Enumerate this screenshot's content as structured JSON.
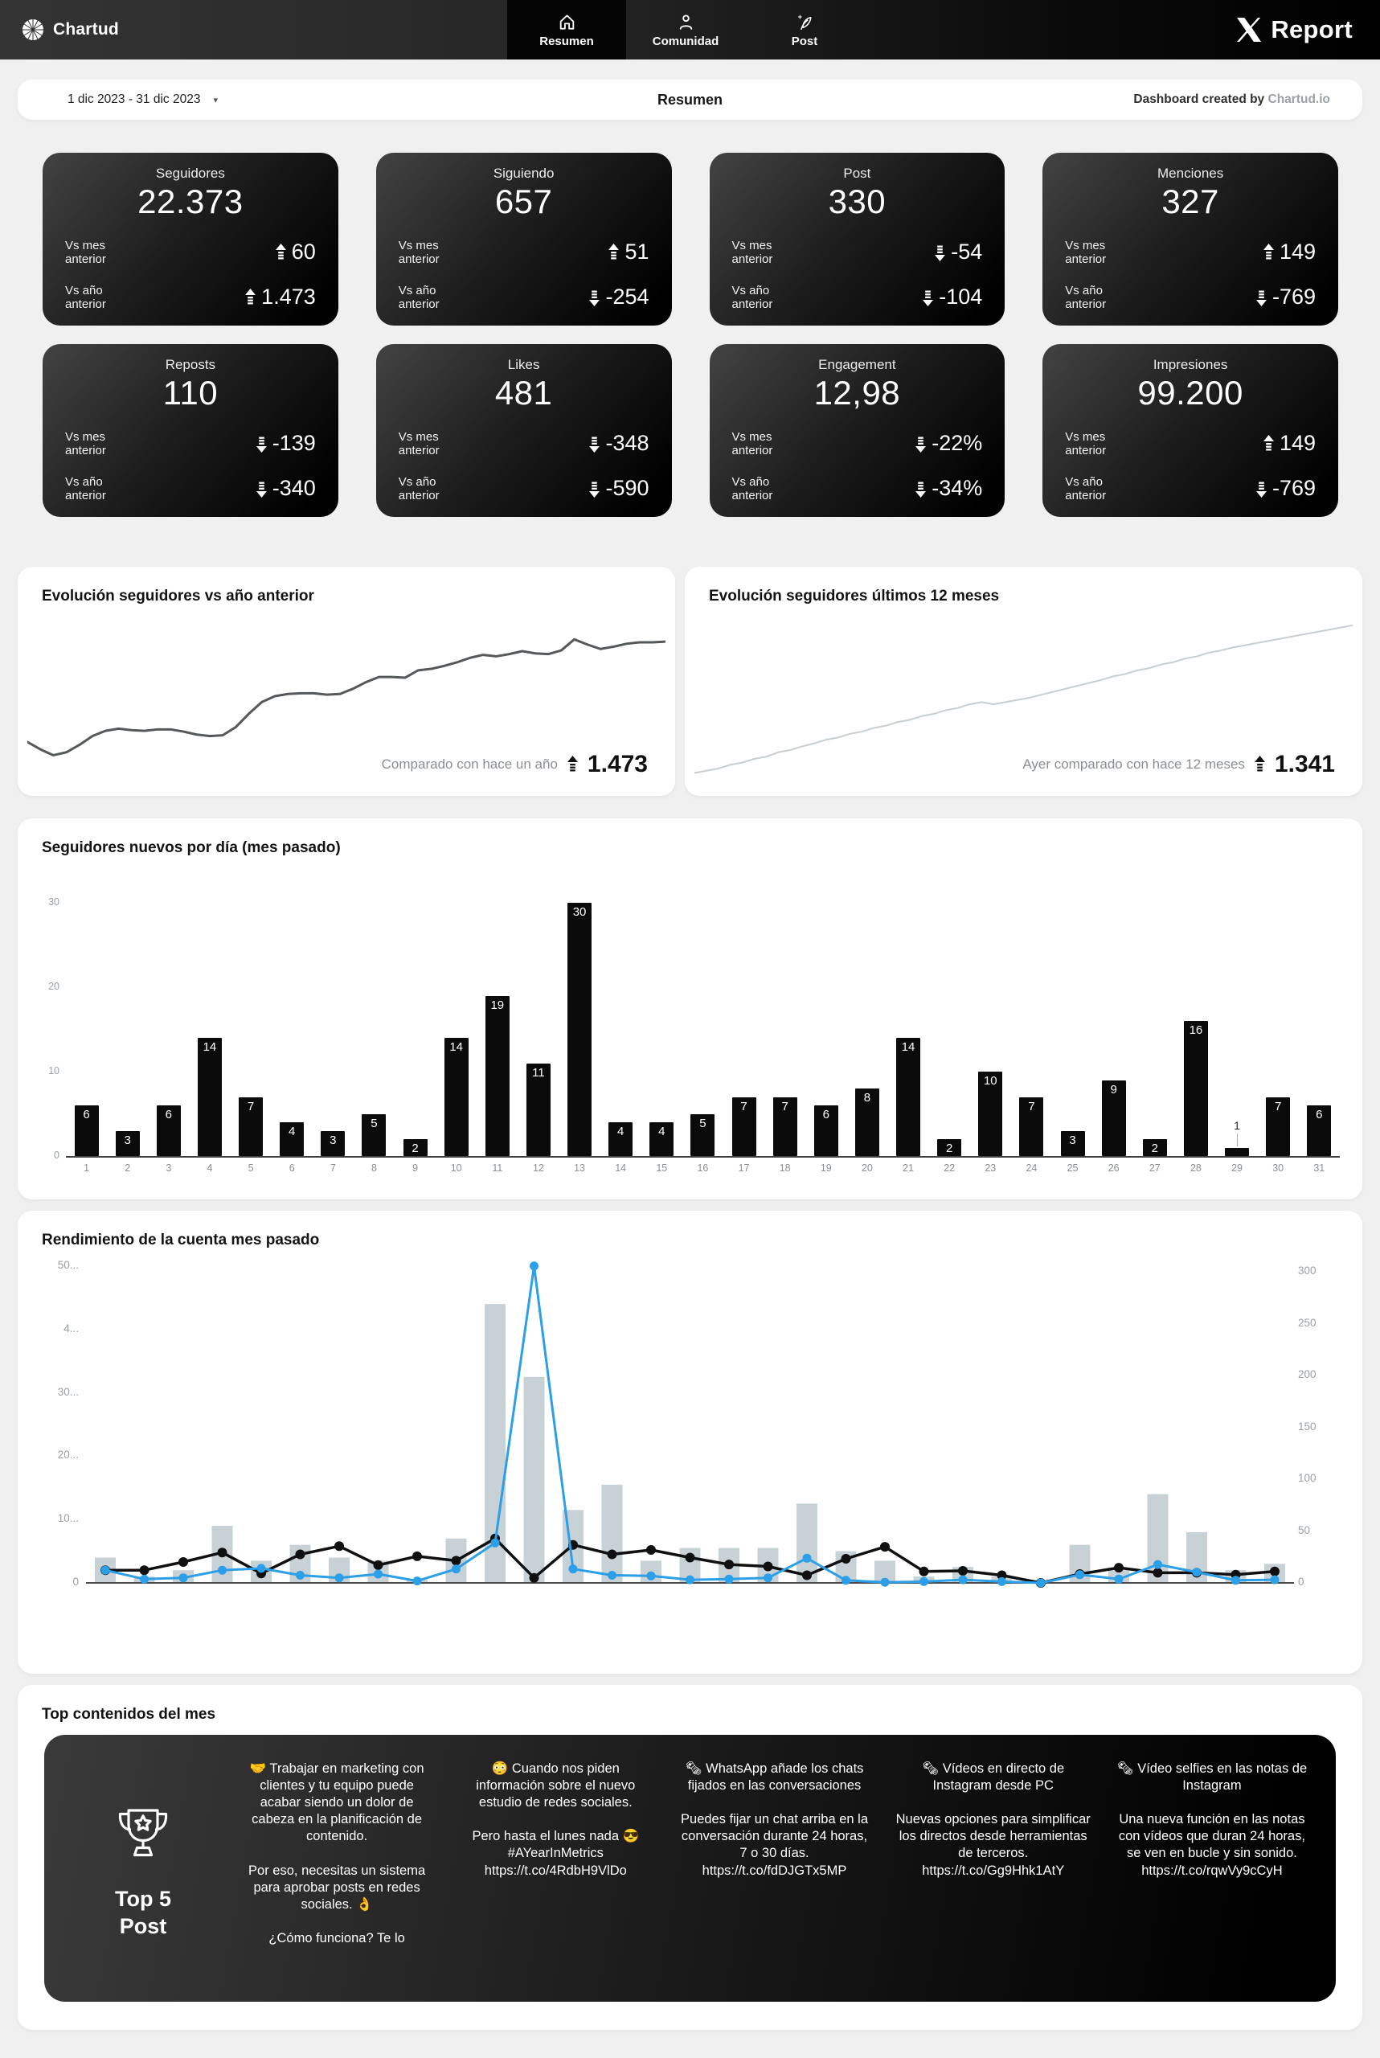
{
  "nav": {
    "brand": "Chartud",
    "tabs": [
      {
        "label": "Resumen",
        "icon": "home-icon",
        "active": true
      },
      {
        "label": "Comunidad",
        "icon": "community-icon",
        "active": false
      },
      {
        "label": "Post",
        "icon": "post-icon",
        "active": false
      }
    ],
    "logo_text": "Report"
  },
  "header": {
    "date_range": "1 dic 2023 - 31 dic 2023",
    "title": "Resumen",
    "credit_prefix": "Dashboard created by",
    "credit_brand": "Chartud.io"
  },
  "kpis": [
    {
      "title": "Seguidores",
      "value": "22.373",
      "deltas": [
        {
          "label": "Vs mes anterior",
          "value": "60",
          "dir": "up"
        },
        {
          "label": "Vs año anterior",
          "value": "1.473",
          "dir": "up"
        }
      ]
    },
    {
      "title": "Siguiendo",
      "value": "657",
      "deltas": [
        {
          "label": "Vs mes anterior",
          "value": "51",
          "dir": "up"
        },
        {
          "label": "Vs año anterior",
          "value": "-254",
          "dir": "down"
        }
      ]
    },
    {
      "title": "Post",
      "value": "330",
      "deltas": [
        {
          "label": "Vs mes anterior",
          "value": "-54",
          "dir": "down"
        },
        {
          "label": "Vs año anterior",
          "value": "-104",
          "dir": "down"
        }
      ]
    },
    {
      "title": "Menciones",
      "value": "327",
      "deltas": [
        {
          "label": "Vs mes anterior",
          "value": "149",
          "dir": "up"
        },
        {
          "label": "Vs año anterior",
          "value": "-769",
          "dir": "down"
        }
      ]
    },
    {
      "title": "Reposts",
      "value": "110",
      "deltas": [
        {
          "label": "Vs mes anterior",
          "value": "-139",
          "dir": "down"
        },
        {
          "label": "Vs año anterior",
          "value": "-340",
          "dir": "down"
        }
      ]
    },
    {
      "title": "Likes",
      "value": "481",
      "deltas": [
        {
          "label": "Vs mes anterior",
          "value": "-348",
          "dir": "down"
        },
        {
          "label": "Vs año anterior",
          "value": "-590",
          "dir": "down"
        }
      ]
    },
    {
      "title": "Engagement",
      "value": "12,98",
      "deltas": [
        {
          "label": "Vs mes anterior",
          "value": "-22%",
          "dir": "down"
        },
        {
          "label": "Vs año anterior",
          "value": "-34%",
          "dir": "down"
        }
      ]
    },
    {
      "title": "Impresiones",
      "value": "99.200",
      "deltas": [
        {
          "label": "Vs mes anterior",
          "value": "149",
          "dir": "up"
        },
        {
          "label": "Vs año anterior",
          "value": "-769",
          "dir": "down"
        }
      ]
    }
  ],
  "chart_data": [
    {
      "id": "evolution-vs-year",
      "type": "line",
      "title": "Evolución seguidores vs año anterior",
      "caption": "Comparado con hace un año",
      "delta": "1.473",
      "delta_dir": "up",
      "color": "#55585a",
      "stroke_width": 3,
      "values": [
        21,
        16,
        12,
        14,
        19,
        25,
        28.5,
        30,
        29,
        28.5,
        29.5,
        29.5,
        28,
        26,
        25,
        25.5,
        31,
        40,
        48,
        52,
        53.5,
        54,
        54,
        53,
        53.5,
        57,
        61.5,
        65,
        65,
        64.5,
        69.5,
        70.5,
        72.5,
        75,
        78,
        80,
        79,
        80.5,
        82.5,
        81,
        80.5,
        83,
        90.5,
        87,
        84,
        85.5,
        87.5,
        88.5,
        88.5,
        89
      ]
    },
    {
      "id": "evolution-12m",
      "type": "line",
      "title": "Evolución seguidores últimos 12 meses",
      "caption": "Ayer comparado con hace 12 meses",
      "delta": "1.341",
      "delta_dir": "up",
      "color": "#c7cfd5",
      "stroke_width": 2,
      "values": [
        0,
        1.5,
        3,
        5.5,
        7,
        9.5,
        11,
        14,
        15.5,
        18,
        20,
        22.5,
        24,
        26.5,
        28,
        30.5,
        32,
        34.5,
        36,
        38.5,
        40,
        42.5,
        44,
        46.5,
        48,
        46.5,
        48,
        49.5,
        51,
        53,
        55,
        57,
        59,
        61,
        63,
        65.5,
        67,
        69.5,
        71,
        73.5,
        75,
        77.5,
        79,
        81.5,
        83,
        85,
        86.5,
        88,
        89.5,
        91,
        92.5,
        94,
        95.5,
        97,
        98.5,
        100
      ]
    },
    {
      "id": "daily-followers",
      "type": "bar",
      "title": "Seguidores nuevos por día (mes pasado)",
      "categories": [
        1,
        2,
        3,
        4,
        5,
        6,
        7,
        8,
        9,
        10,
        11,
        12,
        13,
        14,
        15,
        16,
        17,
        18,
        19,
        20,
        21,
        22,
        23,
        24,
        25,
        26,
        27,
        28,
        29,
        30,
        31
      ],
      "values": [
        6,
        3,
        6,
        14,
        7,
        4,
        3,
        5,
        2,
        14,
        19,
        11,
        30,
        4,
        4,
        5,
        7,
        7,
        6,
        8,
        14,
        2,
        10,
        7,
        3,
        9,
        2,
        16,
        1,
        7,
        6
      ],
      "yticks": [
        0,
        10,
        20,
        30
      ],
      "ylim": [
        0,
        32
      ],
      "bar_color": "#0b0b0b"
    },
    {
      "id": "performance",
      "type": "combo",
      "title": "Rendimiento de la cuenta mes pasado",
      "x": [
        1,
        2,
        3,
        4,
        5,
        6,
        7,
        8,
        9,
        10,
        11,
        12,
        13,
        14,
        15,
        16,
        17,
        18,
        19,
        20,
        21,
        22,
        23,
        24,
        25,
        26,
        27,
        28,
        29,
        30,
        31
      ],
      "series": [
        {
          "name": "bars",
          "type": "bar",
          "color": "#c8d1d6",
          "values": [
            4,
            1,
            2,
            9,
            3.5,
            6,
            4,
            3.5,
            0.5,
            7,
            44,
            32.5,
            11.5,
            15.5,
            3.5,
            5.5,
            5.5,
            5.5,
            12.5,
            5,
            3.5,
            1,
            2.5,
            1,
            0,
            6,
            2,
            14,
            8,
            2,
            3
          ]
        },
        {
          "name": "line-black",
          "type": "line",
          "color": "#101010",
          "values": [
            2,
            2,
            3.3,
            4.8,
            1.5,
            4.5,
            5.8,
            2.8,
            4.2,
            3.5,
            7,
            0.8,
            6,
            4.5,
            5.2,
            4,
            2.9,
            2.6,
            1.2,
            3.8,
            5.7,
            1.8,
            1.9,
            1.2,
            0,
            1.4,
            2.4,
            1.6,
            1.6,
            1.3,
            1.8
          ]
        },
        {
          "name": "line-blue",
          "type": "line",
          "color": "#2b9fe8",
          "values": [
            2,
            0.6,
            0.8,
            2,
            2.3,
            1.2,
            0.8,
            1.4,
            0.3,
            2.2,
            6.3,
            50,
            2.2,
            1.2,
            1.1,
            0.5,
            0.6,
            0.8,
            3.9,
            0.4,
            0.1,
            0.2,
            0.5,
            0.2,
            0,
            1.3,
            0.6,
            2.9,
            1.7,
            0.4,
            0.5
          ]
        }
      ],
      "left_axis_ticks": [
        "0",
        "10...",
        "20...",
        "30...",
        "4...",
        "50..."
      ],
      "left_axis_values": [
        0,
        10,
        20,
        30,
        40,
        50
      ],
      "right_axis_ticks": [
        "0",
        "50",
        "100",
        "150",
        "200",
        "250",
        "300"
      ],
      "right_axis_values": [
        0,
        50,
        100,
        150,
        200,
        250,
        300
      ],
      "ylim_left": [
        0,
        52
      ],
      "ylim_right": [
        0,
        300
      ]
    }
  ],
  "top_posts": {
    "heading": "Top contenidos del mes",
    "badge_line1": "Top 5",
    "badge_line2": "Post",
    "posts": [
      {
        "paragraphs": [
          "🤝 Trabajar en marketing con clientes y tu equipo puede acabar siendo un dolor de cabeza en la planificación de contenido.",
          "Por eso, necesitas un sistema para aprobar posts en redes sociales. 👌",
          "¿Cómo funciona? Te lo"
        ]
      },
      {
        "paragraphs": [
          "😳 Cuando nos piden información sobre el nuevo estudio de redes sociales.",
          "Pero hasta el lunes nada 😎 #AYearInMetrics https://t.co/4RdbH9VlDo"
        ]
      },
      {
        "paragraphs": [
          "🗞 WhatsApp añade los chats fijados en las conversaciones",
          "Puedes fijar un chat arriba en la conversación durante 24 horas, 7 o 30 días. https://t.co/fdDJGTx5MP"
        ]
      },
      {
        "paragraphs": [
          "🗞 Vídeos en directo de Instagram desde PC",
          "Nuevas opciones para simplificar los directos desde herramientas de terceros. https://t.co/Gg9Hhk1AtY"
        ]
      },
      {
        "paragraphs": [
          "🗞 Vídeo selfies en las notas de Instagram",
          "Una nueva función en las notas con vídeos que duran 24 horas, se ven en bucle y sin sonido. https://t.co/rqwVy9cCyH"
        ]
      }
    ]
  }
}
